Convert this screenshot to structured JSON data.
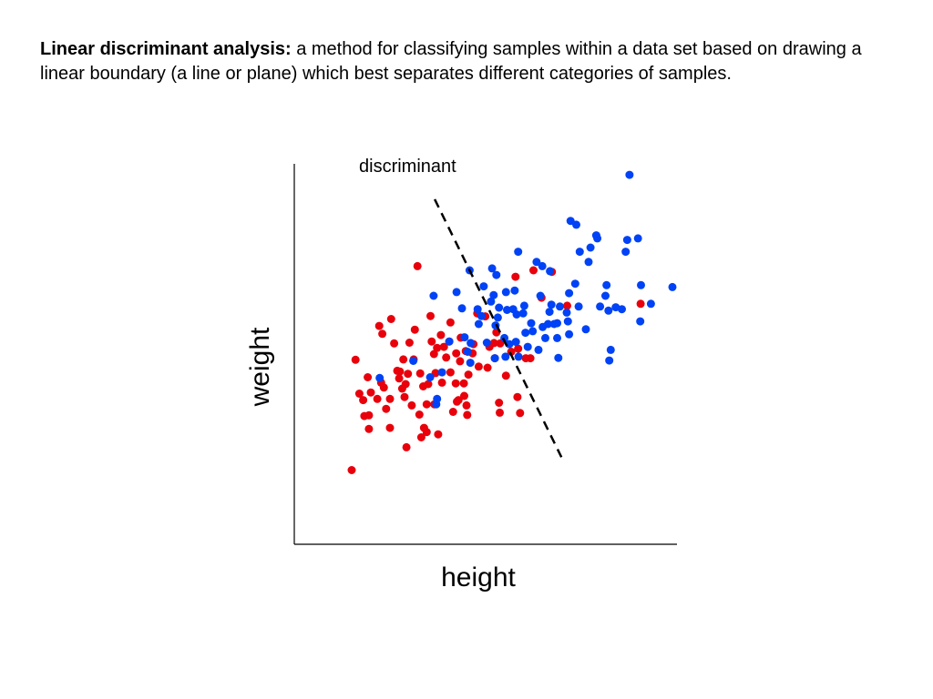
{
  "definition": {
    "term": "Linear discriminant analysis:",
    "text": "a method for classifying samples within a data set based on drawing a linear boundary (a line or plane) which best separates different categories of samples."
  },
  "chart_data": {
    "type": "scatter",
    "xlabel": "height",
    "ylabel": "weight",
    "annotation": "discriminant",
    "xlim": [
      0,
      100
    ],
    "ylim": [
      0,
      100
    ],
    "grid": false,
    "legend": "none",
    "boundary_line": {
      "x": [
        36.7,
        69.8
      ],
      "y": [
        90.7,
        22.9
      ]
    },
    "series": [
      {
        "color": "#e8000b",
        "points": [
          [
            15,
            19.5
          ],
          [
            16,
            48.5
          ],
          [
            17,
            39.6
          ],
          [
            18,
            37.9
          ],
          [
            18.3,
            33.7
          ],
          [
            19.2,
            43.9
          ],
          [
            19.5,
            30.3
          ],
          [
            19.5,
            33.9
          ],
          [
            20,
            39.9
          ],
          [
            21.7,
            38.2
          ],
          [
            22.2,
            57.4
          ],
          [
            22.7,
            42.5
          ],
          [
            23,
            55.3
          ],
          [
            23.4,
            41.2
          ],
          [
            24,
            35.6
          ],
          [
            25,
            30.6
          ],
          [
            25,
            38.2
          ],
          [
            25.3,
            59.2
          ],
          [
            26.1,
            52.8
          ],
          [
            26.9,
            45.6
          ],
          [
            27.4,
            43.6
          ],
          [
            27.6,
            45.4
          ],
          [
            28.2,
            40.9
          ],
          [
            28.5,
            48.6
          ],
          [
            28.8,
            38.7
          ],
          [
            29.1,
            42.1
          ],
          [
            29.7,
            44.8
          ],
          [
            29.3,
            25.5
          ],
          [
            30.1,
            53.0
          ],
          [
            30.7,
            36.5
          ],
          [
            31.2,
            48.6
          ],
          [
            31.5,
            56.4
          ],
          [
            32.2,
            73.1
          ],
          [
            32.9,
            44.9
          ],
          [
            32.7,
            34.1
          ],
          [
            33.2,
            28.1
          ],
          [
            33.9,
            30.6
          ],
          [
            33.7,
            41.5
          ],
          [
            34.6,
            29.5
          ],
          [
            34.6,
            36.8
          ],
          [
            35.0,
            42.1
          ],
          [
            35.6,
            60.0
          ],
          [
            35.9,
            53.3
          ],
          [
            36.5,
            50.0
          ],
          [
            36.6,
            36.8
          ],
          [
            36.9,
            45.0
          ],
          [
            37.6,
            28.9
          ],
          [
            37.3,
            51.6
          ],
          [
            38.6,
            42.5
          ],
          [
            38.3,
            55.0
          ],
          [
            39.1,
            51.9
          ],
          [
            39.7,
            49.1
          ],
          [
            40.5,
            53.3
          ],
          [
            40.8,
            45.2
          ],
          [
            40.8,
            58.3
          ],
          [
            41.5,
            34.8
          ],
          [
            42.2,
            42.3
          ],
          [
            42.3,
            50.2
          ],
          [
            42.9,
            37.9
          ],
          [
            43.3,
            48.1
          ],
          [
            43.5,
            54.3
          ],
          [
            44.3,
            42.3
          ],
          [
            44.4,
            39.0
          ],
          [
            45.2,
            34.0
          ],
          [
            45.0,
            36.5
          ],
          [
            45.5,
            44.6
          ],
          [
            46.6,
            50.2
          ],
          [
            46.8,
            52.6
          ],
          [
            47.8,
            60.7
          ],
          [
            48.2,
            46.7
          ],
          [
            49.9,
            59.9
          ],
          [
            50.5,
            46.4
          ],
          [
            51.0,
            51.9
          ],
          [
            52.4,
            48.9
          ],
          [
            52.2,
            52.9
          ],
          [
            52.8,
            55.7
          ],
          [
            53.5,
            37.2
          ],
          [
            53.8,
            52.8
          ],
          [
            53.7,
            34.6
          ],
          [
            55.3,
            44.3
          ],
          [
            56.7,
            50.6
          ],
          [
            57.8,
            70.3
          ],
          [
            58.3,
            38.7
          ],
          [
            58.5,
            51.4
          ],
          [
            59.0,
            34.5
          ],
          [
            60.5,
            48.9
          ],
          [
            61.7,
            48.9
          ],
          [
            62.5,
            72.0
          ],
          [
            64.6,
            64.8
          ],
          [
            67.3,
            71.6
          ],
          [
            71.3,
            62.7
          ],
          [
            90.5,
            63.2
          ],
          [
            42.5,
            37.5
          ],
          [
            44.8,
            50.8
          ]
        ]
      },
      {
        "color": "#0042f5",
        "points": [
          [
            22.3,
            43.7
          ],
          [
            31.1,
            48.2
          ],
          [
            35.5,
            43.9
          ],
          [
            36.4,
            65.3
          ],
          [
            37.3,
            38.2
          ],
          [
            37.1,
            36.8
          ],
          [
            38.6,
            45.2
          ],
          [
            40.5,
            53.3
          ],
          [
            42.4,
            66.3
          ],
          [
            43.8,
            62.0
          ],
          [
            44.5,
            54.4
          ],
          [
            45.3,
            50.6
          ],
          [
            46.0,
            47.7
          ],
          [
            46.1,
            52.9
          ],
          [
            47.9,
            61.8
          ],
          [
            48.2,
            57.9
          ],
          [
            48.9,
            60.0
          ],
          [
            49.5,
            67.8
          ],
          [
            50.3,
            53.0
          ],
          [
            51.4,
            63.8
          ],
          [
            52.1,
            65.5
          ],
          [
            52.6,
            57.5
          ],
          [
            52.8,
            70.8
          ],
          [
            53.5,
            62.2
          ],
          [
            54.9,
            54.2
          ],
          [
            55.6,
            61.6
          ],
          [
            56.2,
            52.6
          ],
          [
            55.2,
            49.3
          ],
          [
            57.6,
            66.7
          ],
          [
            57.9,
            53.2
          ],
          [
            58.1,
            60.4
          ],
          [
            57.2,
            61.8
          ],
          [
            58.5,
            76.9
          ],
          [
            58.6,
            49.3
          ],
          [
            59.8,
            60.7
          ],
          [
            60.1,
            62.7
          ],
          [
            60.4,
            55.6
          ],
          [
            61.0,
            51.9
          ],
          [
            62.3,
            56.0
          ],
          [
            61.9,
            58.1
          ],
          [
            63.3,
            74.2
          ],
          [
            63.8,
            51.1
          ],
          [
            64.3,
            65.3
          ],
          [
            64.8,
            73.1
          ],
          [
            64.9,
            57.1
          ],
          [
            65.6,
            54.2
          ],
          [
            66.3,
            57.9
          ],
          [
            66.7,
            61.1
          ],
          [
            67.2,
            63.0
          ],
          [
            66.8,
            71.8
          ],
          [
            67.9,
            57.9
          ],
          [
            68.7,
            58.1
          ],
          [
            68.7,
            54.2
          ],
          [
            69.4,
            62.5
          ],
          [
            69.0,
            49.0
          ],
          [
            71.5,
            58.6
          ],
          [
            71.8,
            55.2
          ],
          [
            71.2,
            60.9
          ],
          [
            72.2,
            85.0
          ],
          [
            71.8,
            66.0
          ],
          [
            73.4,
            68.5
          ],
          [
            74.6,
            76.9
          ],
          [
            73.7,
            84.0
          ],
          [
            74.3,
            62.5
          ],
          [
            76.2,
            56.5
          ],
          [
            76.9,
            74.2
          ],
          [
            77.4,
            78.0
          ],
          [
            78.9,
            81.2
          ],
          [
            79.2,
            80.4
          ],
          [
            79.9,
            62.5
          ],
          [
            81.3,
            65.3
          ],
          [
            81.6,
            68.1
          ],
          [
            82.7,
            51.1
          ],
          [
            82.3,
            48.3
          ],
          [
            84.0,
            62.3
          ],
          [
            85.6,
            61.8
          ],
          [
            86.6,
            76.9
          ],
          [
            87.0,
            80.0
          ],
          [
            87.6,
            97.1
          ],
          [
            89.8,
            80.4
          ],
          [
            90.4,
            58.6
          ],
          [
            90.6,
            68.1
          ],
          [
            93.2,
            63.2
          ],
          [
            98.8,
            67.6
          ],
          [
            51.7,
            72.5
          ],
          [
            45.8,
            72.0
          ],
          [
            55.3,
            66.3
          ],
          [
            52.4,
            48.9
          ],
          [
            53.2,
            59.6
          ],
          [
            82.1,
            61.4
          ]
        ]
      }
    ]
  }
}
